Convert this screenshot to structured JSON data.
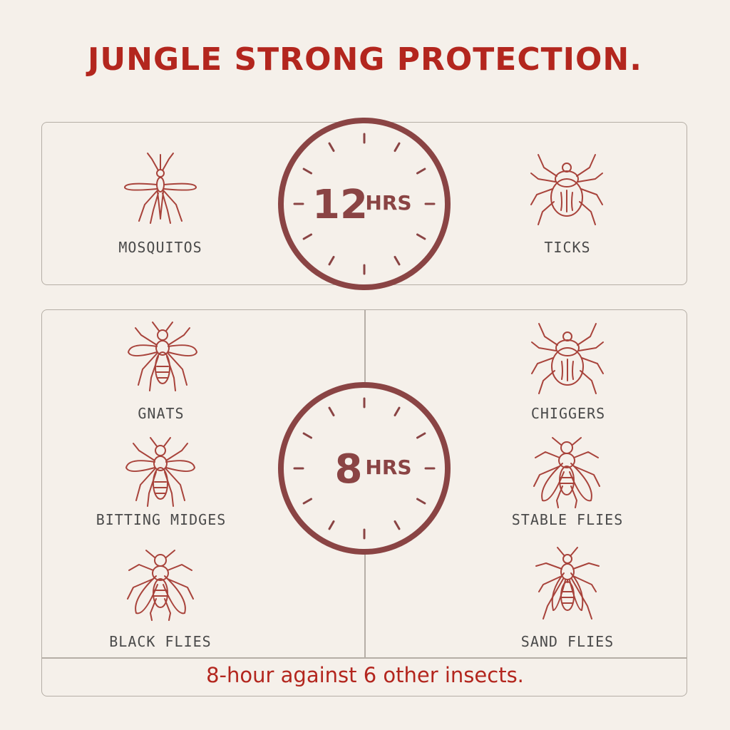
{
  "title": "JUNGLE STRONG PROTECTION.",
  "colors": {
    "accent": "#b3261e",
    "clock": "#8a4444",
    "icon": "#a8433b",
    "background": "#f5f0ea"
  },
  "top_section": {
    "clock": {
      "number": "12",
      "unit": "HRS"
    },
    "insects": [
      {
        "label": "MOSQUITOS",
        "icon": "mosquito-icon"
      },
      {
        "label": "TICKS",
        "icon": "tick-icon"
      }
    ]
  },
  "bottom_section": {
    "clock": {
      "number": "8",
      "unit": "HRS"
    },
    "insects": [
      {
        "label": "GNATS",
        "icon": "gnat-icon"
      },
      {
        "label": "CHIGGERS",
        "icon": "chigger-icon"
      },
      {
        "label": "BITTING MIDGES",
        "icon": "midge-icon"
      },
      {
        "label": "STABLE FLIES",
        "icon": "stable-fly-icon"
      },
      {
        "label": "BLACK FLIES",
        "icon": "black-fly-icon"
      },
      {
        "label": "SAND FLIES",
        "icon": "sand-fly-icon"
      }
    ],
    "footer": "8-hour against 6 other insects."
  }
}
